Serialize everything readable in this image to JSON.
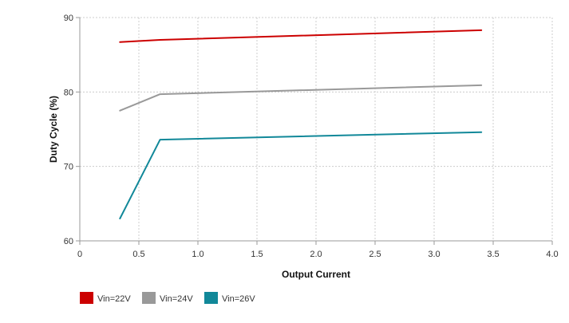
{
  "chart_data": {
    "type": "line",
    "title": "",
    "xlabel": "Output Current",
    "ylabel": "Duty Cycle (%)",
    "xlim": [
      0,
      4.0
    ],
    "ylim": [
      60,
      90
    ],
    "x_ticks": [
      "0",
      "0.5",
      "1.0",
      "1.5",
      "2.0",
      "2.5",
      "3.0",
      "3.5",
      "4.0"
    ],
    "x_tick_values": [
      0,
      0.5,
      1.0,
      1.5,
      2.0,
      2.5,
      3.0,
      3.5,
      4.0
    ],
    "y_ticks": [
      "60",
      "70",
      "80",
      "90"
    ],
    "y_tick_values": [
      60,
      70,
      80,
      90
    ],
    "grid": true,
    "legend_position": "bottom-left",
    "series": [
      {
        "name": "Vin=22V",
        "color": "#cc0000",
        "x": [
          0.34,
          0.68,
          3.4
        ],
        "y": [
          86.7,
          87.0,
          88.3
        ]
      },
      {
        "name": "Vin=24V",
        "color": "#999999",
        "x": [
          0.34,
          0.68,
          3.4
        ],
        "y": [
          77.5,
          79.7,
          80.9
        ]
      },
      {
        "name": "Vin=26V",
        "color": "#118899",
        "x": [
          0.34,
          0.68,
          3.4
        ],
        "y": [
          63.0,
          73.6,
          74.6
        ]
      }
    ]
  }
}
